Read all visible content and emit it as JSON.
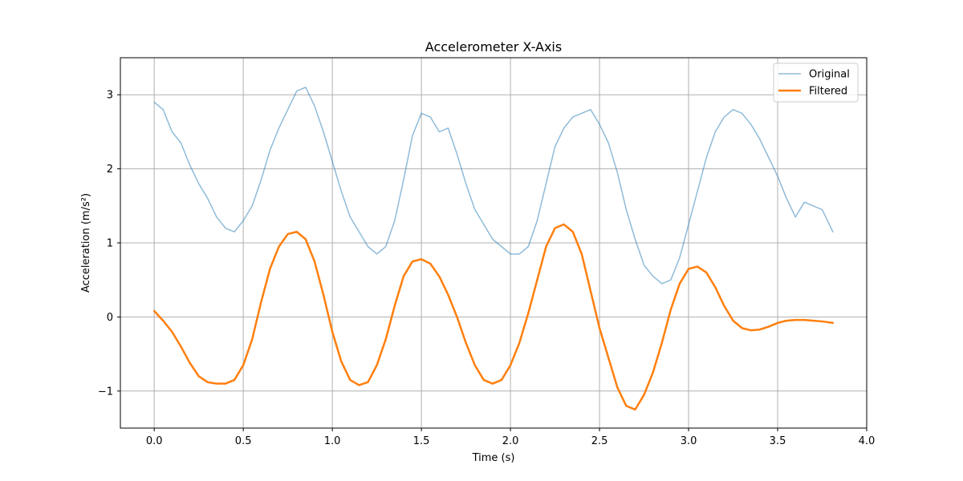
{
  "chart_data": {
    "type": "line",
    "title": "Accelerometer X-Axis",
    "xlabel": "Time (s)",
    "ylabel": "Acceleration (m/s²)",
    "xlim": [
      -0.19,
      4.0
    ],
    "ylim": [
      -1.5,
      3.5
    ],
    "xticks": [
      0.0,
      0.5,
      1.0,
      1.5,
      2.0,
      2.5,
      3.0,
      3.5,
      4.0
    ],
    "xtick_labels": [
      "0.0",
      "0.5",
      "1.0",
      "1.5",
      "2.0",
      "2.5",
      "3.0",
      "3.5",
      "4.0"
    ],
    "yticks": [
      -1,
      0,
      1,
      2,
      3
    ],
    "ytick_labels": [
      "−1",
      "0",
      "1",
      "2",
      "3"
    ],
    "grid": true,
    "legend_position": "upper right",
    "series": [
      {
        "name": "Original",
        "color": "#1f77b4",
        "opacity": 0.5,
        "line_width": 1.5,
        "x": [
          0.0,
          0.05,
          0.1,
          0.15,
          0.2,
          0.25,
          0.3,
          0.35,
          0.4,
          0.45,
          0.5,
          0.55,
          0.6,
          0.65,
          0.7,
          0.75,
          0.8,
          0.85,
          0.9,
          0.95,
          1.0,
          1.05,
          1.1,
          1.15,
          1.2,
          1.25,
          1.3,
          1.35,
          1.4,
          1.45,
          1.5,
          1.55,
          1.6,
          1.65,
          1.7,
          1.75,
          1.8,
          1.85,
          1.9,
          1.95,
          2.0,
          2.05,
          2.1,
          2.15,
          2.2,
          2.25,
          2.3,
          2.35,
          2.4,
          2.45,
          2.5,
          2.55,
          2.6,
          2.65,
          2.7,
          2.75,
          2.8,
          2.85,
          2.9,
          2.95,
          3.0,
          3.05,
          3.1,
          3.15,
          3.2,
          3.25,
          3.3,
          3.35,
          3.4,
          3.45,
          3.5,
          3.55,
          3.6,
          3.65,
          3.7,
          3.75,
          3.81
        ],
        "y": [
          2.9,
          2.8,
          2.5,
          2.35,
          2.05,
          1.8,
          1.6,
          1.35,
          1.2,
          1.15,
          1.3,
          1.5,
          1.85,
          2.25,
          2.55,
          2.8,
          3.05,
          3.1,
          2.85,
          2.5,
          2.1,
          1.7,
          1.35,
          1.15,
          0.95,
          0.85,
          0.95,
          1.3,
          1.85,
          2.45,
          2.75,
          2.7,
          2.5,
          2.55,
          2.2,
          1.8,
          1.45,
          1.25,
          1.05,
          0.95,
          0.85,
          0.85,
          0.95,
          1.3,
          1.8,
          2.3,
          2.55,
          2.7,
          2.75,
          2.8,
          2.6,
          2.35,
          1.95,
          1.45,
          1.05,
          0.7,
          0.55,
          0.45,
          0.5,
          0.8,
          1.25,
          1.7,
          2.15,
          2.5,
          2.7,
          2.8,
          2.75,
          2.6,
          2.4,
          2.15,
          1.9,
          1.6,
          1.35,
          1.55,
          1.5,
          1.45,
          1.15
        ]
      },
      {
        "name": "Filtered",
        "color": "#ff7f0e",
        "opacity": 1,
        "line_width": 2.5,
        "x": [
          0.0,
          0.05,
          0.1,
          0.15,
          0.2,
          0.25,
          0.3,
          0.35,
          0.4,
          0.45,
          0.5,
          0.55,
          0.6,
          0.65,
          0.7,
          0.75,
          0.8,
          0.85,
          0.9,
          0.95,
          1.0,
          1.05,
          1.1,
          1.15,
          1.2,
          1.25,
          1.3,
          1.35,
          1.4,
          1.45,
          1.5,
          1.55,
          1.6,
          1.65,
          1.7,
          1.75,
          1.8,
          1.85,
          1.9,
          1.95,
          2.0,
          2.05,
          2.1,
          2.15,
          2.2,
          2.25,
          2.3,
          2.35,
          2.4,
          2.45,
          2.5,
          2.55,
          2.6,
          2.65,
          2.7,
          2.75,
          2.8,
          2.85,
          2.9,
          2.95,
          3.0,
          3.05,
          3.1,
          3.15,
          3.2,
          3.25,
          3.3,
          3.35,
          3.4,
          3.45,
          3.5,
          3.55,
          3.6,
          3.65,
          3.7,
          3.75,
          3.81
        ],
        "y": [
          0.08,
          -0.05,
          -0.2,
          -0.4,
          -0.62,
          -0.8,
          -0.88,
          -0.9,
          -0.9,
          -0.85,
          -0.65,
          -0.3,
          0.2,
          0.65,
          0.95,
          1.12,
          1.15,
          1.05,
          0.75,
          0.3,
          -0.2,
          -0.6,
          -0.85,
          -0.92,
          -0.88,
          -0.65,
          -0.3,
          0.15,
          0.55,
          0.75,
          0.78,
          0.72,
          0.55,
          0.3,
          0.0,
          -0.35,
          -0.65,
          -0.85,
          -0.9,
          -0.85,
          -0.65,
          -0.35,
          0.05,
          0.5,
          0.95,
          1.2,
          1.25,
          1.15,
          0.85,
          0.35,
          -0.15,
          -0.55,
          -0.95,
          -1.2,
          -1.25,
          -1.05,
          -0.75,
          -0.35,
          0.1,
          0.45,
          0.65,
          0.68,
          0.6,
          0.4,
          0.15,
          -0.05,
          -0.15,
          -0.18,
          -0.17,
          -0.13,
          -0.08,
          -0.05,
          -0.04,
          -0.04,
          -0.05,
          -0.06,
          -0.08
        ]
      }
    ]
  }
}
